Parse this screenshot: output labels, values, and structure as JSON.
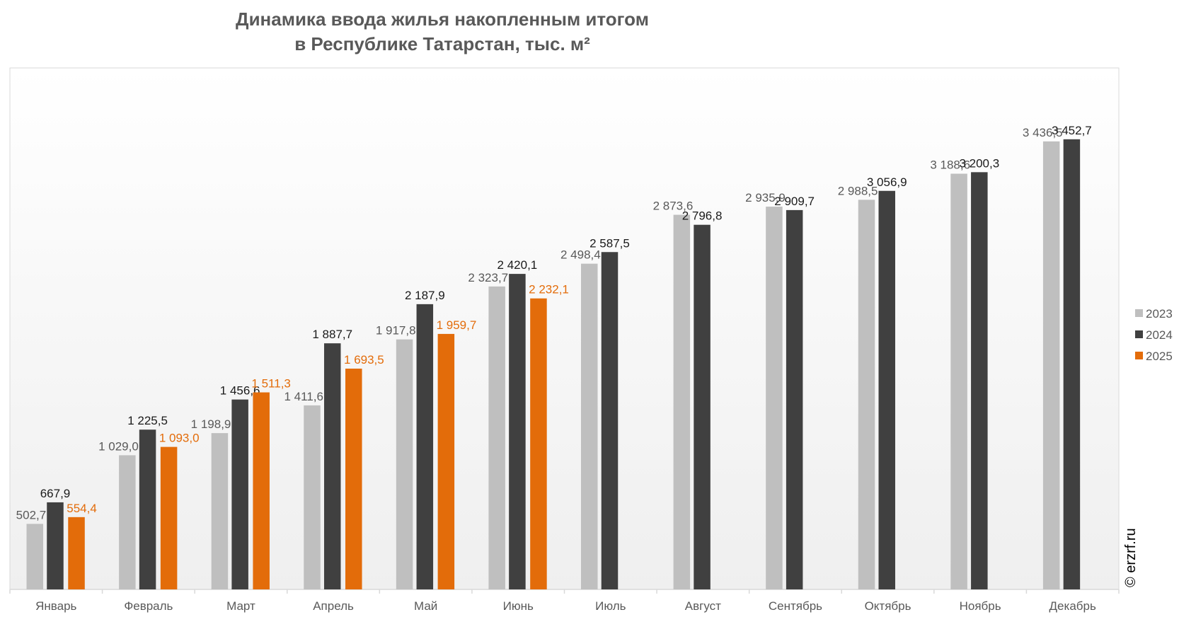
{
  "chart_data": {
    "type": "bar",
    "title_lines": [
      "Динамика ввода жилья накопленным итогом",
      "в Республике Татарстан, тыс. м²"
    ],
    "categories": [
      "Январь",
      "Февраль",
      "Март",
      "Апрель",
      "Май",
      "Июнь",
      "Июль",
      "Август",
      "Сентябрь",
      "Октябрь",
      "Ноябрь",
      "Декабрь"
    ],
    "series": [
      {
        "name": "2023",
        "color": "#bfbfbf",
        "label_color": "#595959",
        "values": [
          502.7,
          1029.0,
          1198.9,
          1411.6,
          1917.8,
          2323.7,
          2498.4,
          2873.6,
          2935.9,
          2988.5,
          3188.6,
          3436.5
        ],
        "labels": [
          "502,7",
          "1 029,0",
          "1 198,9",
          "1 411,6",
          "1 917,8",
          "2 323,7",
          "2 498,4",
          "2 873,6",
          "2 935,9",
          "2 988,5",
          "3 188,6",
          "3 436,5"
        ]
      },
      {
        "name": "2024",
        "color": "#404040",
        "label_color": "#1a1a1a",
        "values": [
          667.9,
          1225.5,
          1456.6,
          1887.7,
          2187.9,
          2420.1,
          2587.5,
          2796.8,
          2909.7,
          3056.9,
          3200.3,
          3452.7
        ],
        "labels": [
          "667,9",
          "1 225,5",
          "1 456,6",
          "1 887,7",
          "2 187,9",
          "2 420,1",
          "2 587,5",
          "2 796,8",
          "2 909,7",
          "3 056,9",
          "3 200,3",
          "3 452,7"
        ]
      },
      {
        "name": "2025",
        "color": "#e36c0a",
        "label_color": "#e36c0a",
        "values": [
          554.4,
          1093.0,
          1511.3,
          1693.5,
          1959.7,
          2232.1,
          null,
          null,
          null,
          null,
          null,
          null
        ],
        "labels": [
          "554,4",
          "1 093,0",
          "1 511,3",
          "1 693,5",
          "1 959,7",
          "2 232,1",
          null,
          null,
          null,
          null,
          null,
          null
        ]
      }
    ],
    "xlabel": "",
    "ylabel": "",
    "ylim": [
      0,
      4000
    ],
    "grid": false,
    "legend_position": "right",
    "watermark": "© erzrf.ru"
  }
}
